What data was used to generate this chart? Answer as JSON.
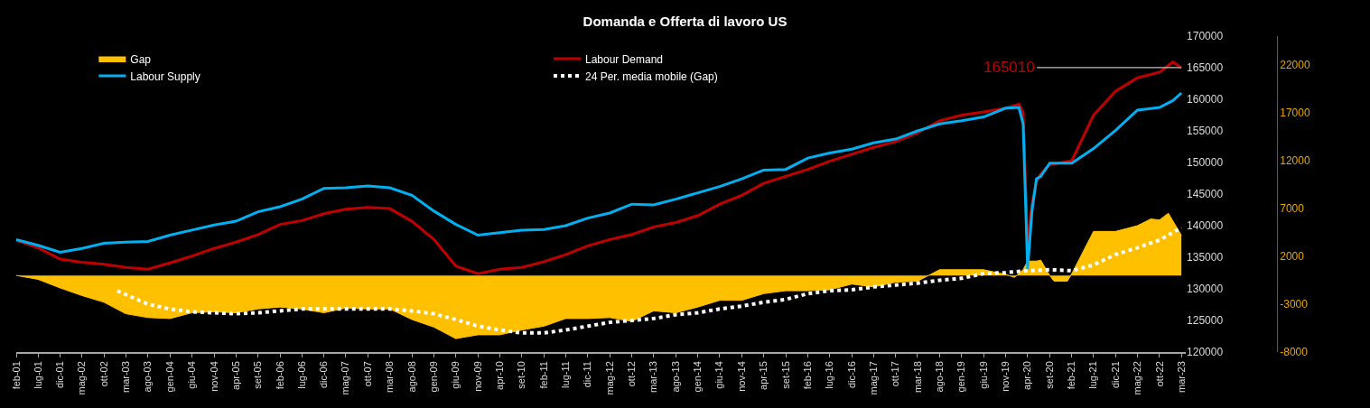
{
  "chart_data": {
    "type": "line",
    "title": "Domanda e Offerta di lavoro US",
    "legend": "top left",
    "xlim": [
      "2001-02",
      "2023-04"
    ],
    "xticks": [
      {
        "value": "2001-02",
        "label": "feb-01"
      },
      {
        "value": "2001-07",
        "label": "lug-01"
      },
      {
        "value": "2001-12",
        "label": "dic-01"
      },
      {
        "value": "2002-05",
        "label": "mag-02"
      },
      {
        "value": "2002-10",
        "label": "ott-02"
      },
      {
        "value": "2003-03",
        "label": "mar-03"
      },
      {
        "value": "2003-08",
        "label": "ago-03"
      },
      {
        "value": "2004-01",
        "label": "gen-04"
      },
      {
        "value": "2004-06",
        "label": "giu-04"
      },
      {
        "value": "2004-11",
        "label": "nov-04"
      },
      {
        "value": "2005-04",
        "label": "apr-05"
      },
      {
        "value": "2005-09",
        "label": "set-05"
      },
      {
        "value": "2006-02",
        "label": "feb-06"
      },
      {
        "value": "2006-07",
        "label": "lug-06"
      },
      {
        "value": "2006-12",
        "label": "dic-06"
      },
      {
        "value": "2007-05",
        "label": "mag-07"
      },
      {
        "value": "2007-10",
        "label": "ott-07"
      },
      {
        "value": "2008-03",
        "label": "mar-08"
      },
      {
        "value": "2008-08",
        "label": "ago-08"
      },
      {
        "value": "2009-01",
        "label": "gen-09"
      },
      {
        "value": "2009-06",
        "label": "giu-09"
      },
      {
        "value": "2009-11",
        "label": "nov-09"
      },
      {
        "value": "2010-04",
        "label": "apr-10"
      },
      {
        "value": "2010-09",
        "label": "set-10"
      },
      {
        "value": "2011-02",
        "label": "feb-11"
      },
      {
        "value": "2011-07",
        "label": "lug-11"
      },
      {
        "value": "2011-12",
        "label": "dic-11"
      },
      {
        "value": "2012-05",
        "label": "mag-12"
      },
      {
        "value": "2012-10",
        "label": "ott-12"
      },
      {
        "value": "2013-03",
        "label": "mar-13"
      },
      {
        "value": "2013-08",
        "label": "ago-13"
      },
      {
        "value": "2014-01",
        "label": "gen-14"
      },
      {
        "value": "2014-06",
        "label": "giu-14"
      },
      {
        "value": "2014-11",
        "label": "nov-14"
      },
      {
        "value": "2015-04",
        "label": "apr-15"
      },
      {
        "value": "2015-09",
        "label": "set-15"
      },
      {
        "value": "2016-02",
        "label": "feb-16"
      },
      {
        "value": "2016-07",
        "label": "lug-16"
      },
      {
        "value": "2016-12",
        "label": "dic-16"
      },
      {
        "value": "2017-05",
        "label": "mag-17"
      },
      {
        "value": "2017-10",
        "label": "ott-17"
      },
      {
        "value": "2018-03",
        "label": "mar-18"
      },
      {
        "value": "2018-08",
        "label": "ago-18"
      },
      {
        "value": "2019-01",
        "label": "gen-19"
      },
      {
        "value": "2019-06",
        "label": "giu-19"
      },
      {
        "value": "2019-11",
        "label": "nov-19"
      },
      {
        "value": "2020-04",
        "label": "apr-20"
      },
      {
        "value": "2020-09",
        "label": "set-20"
      },
      {
        "value": "2021-02",
        "label": "feb-21"
      },
      {
        "value": "2021-07",
        "label": "lug-21"
      },
      {
        "value": "2021-12",
        "label": "dic-21"
      },
      {
        "value": "2022-05",
        "label": "mag-22"
      },
      {
        "value": "2022-10",
        "label": "ott-22"
      },
      {
        "value": "2023-03",
        "label": "mar-23"
      }
    ],
    "ylim": [
      120000,
      170000
    ],
    "yticks": [
      120000,
      125000,
      130000,
      135000,
      140000,
      145000,
      150000,
      155000,
      160000,
      165000,
      170000
    ],
    "y2lim": [
      -8000,
      25000
    ],
    "y2ticks": [
      -8000,
      -3000,
      2000,
      7000,
      12000,
      17000,
      22000
    ],
    "annotations": [
      {
        "text": "165010",
        "x": "2023-03",
        "y": 165010
      }
    ],
    "series": [
      {
        "name": "Gap",
        "type": "area",
        "axis": "y2",
        "color": "#ffc000",
        "x": [
          "2001-02",
          "2001-07",
          "2001-12",
          "2002-05",
          "2002-10",
          "2003-03",
          "2003-08",
          "2004-01",
          "2004-06",
          "2004-11",
          "2005-04",
          "2005-09",
          "2006-02",
          "2006-07",
          "2006-12",
          "2007-05",
          "2007-10",
          "2008-03",
          "2008-08",
          "2009-01",
          "2009-06",
          "2009-11",
          "2010-04",
          "2010-09",
          "2011-02",
          "2011-07",
          "2011-12",
          "2012-05",
          "2012-10",
          "2013-03",
          "2013-08",
          "2014-01",
          "2014-06",
          "2014-11",
          "2015-04",
          "2015-09",
          "2016-02",
          "2016-07",
          "2016-12",
          "2017-05",
          "2017-10",
          "2018-03",
          "2018-08",
          "2019-01",
          "2019-06",
          "2019-11",
          "2020-01",
          "2020-03",
          "2020-04",
          "2020-06",
          "2020-07",
          "2020-09",
          "2020-10",
          "2021-01",
          "2021-02",
          "2021-07",
          "2021-12",
          "2022-05",
          "2022-08",
          "2022-10",
          "2022-12",
          "2023-03"
        ],
        "values": [
          0,
          -400,
          -1300,
          -2100,
          -2800,
          -4000,
          -4400,
          -4500,
          -3900,
          -3800,
          -3900,
          -3500,
          -3300,
          -3500,
          -3900,
          -3400,
          -3500,
          -3500,
          -4600,
          -5400,
          -6600,
          -6200,
          -6200,
          -5700,
          -5300,
          -4500,
          -4500,
          -4400,
          -4800,
          -3700,
          -3900,
          -3300,
          -2600,
          -2600,
          -1900,
          -1600,
          -1600,
          -1500,
          -900,
          -1200,
          -700,
          -600,
          600,
          600,
          600,
          100,
          -200,
          600,
          1500,
          1500,
          1600,
          0,
          -600,
          -600,
          200,
          4600,
          4600,
          5200,
          5900,
          5800,
          6500,
          4200
        ]
      },
      {
        "name": "Labour Demand",
        "color": "#c00000",
        "x": [
          "2001-02",
          "2001-07",
          "2001-12",
          "2002-05",
          "2002-10",
          "2003-03",
          "2003-08",
          "2004-01",
          "2004-06",
          "2004-11",
          "2005-04",
          "2005-09",
          "2006-02",
          "2006-07",
          "2006-12",
          "2007-05",
          "2007-10",
          "2008-03",
          "2008-08",
          "2009-01",
          "2009-06",
          "2009-11",
          "2010-04",
          "2010-09",
          "2011-02",
          "2011-07",
          "2011-12",
          "2012-05",
          "2012-10",
          "2013-03",
          "2013-08",
          "2014-01",
          "2014-06",
          "2014-11",
          "2015-04",
          "2015-09",
          "2016-02",
          "2016-07",
          "2016-12",
          "2017-05",
          "2017-10",
          "2018-03",
          "2018-08",
          "2019-01",
          "2019-06",
          "2019-11",
          "2020-02",
          "2020-03",
          "2020-04",
          "2020-05",
          "2020-06",
          "2020-07",
          "2020-09",
          "2021-02",
          "2021-07",
          "2021-12",
          "2022-05",
          "2022-10",
          "2023-01",
          "2023-03"
        ],
        "values": [
          137700,
          136500,
          134700,
          134200,
          133900,
          133400,
          133100,
          134100,
          135200,
          136400,
          137400,
          138600,
          140200,
          140800,
          141900,
          142600,
          142900,
          142700,
          140700,
          137800,
          133600,
          132400,
          133100,
          133400,
          134300,
          135400,
          136800,
          137800,
          138600,
          139800,
          140500,
          141600,
          143400,
          144800,
          146700,
          147800,
          148900,
          150200,
          151300,
          152400,
          153300,
          154700,
          156600,
          157500,
          158000,
          158600,
          159200,
          157900,
          136800,
          143400,
          146900,
          148200,
          149600,
          150300,
          157500,
          161300,
          163400,
          164300,
          165900,
          165010
        ]
      },
      {
        "name": "Labour Supply",
        "color": "#00b0f0",
        "x": [
          "2001-02",
          "2001-07",
          "2001-12",
          "2002-05",
          "2002-10",
          "2003-03",
          "2003-08",
          "2004-01",
          "2004-06",
          "2004-11",
          "2005-04",
          "2005-09",
          "2006-02",
          "2006-07",
          "2006-12",
          "2007-05",
          "2007-10",
          "2008-03",
          "2008-08",
          "2009-01",
          "2009-06",
          "2009-11",
          "2010-04",
          "2010-09",
          "2011-02",
          "2011-07",
          "2011-12",
          "2012-05",
          "2012-10",
          "2013-03",
          "2013-08",
          "2014-01",
          "2014-06",
          "2014-11",
          "2015-04",
          "2015-09",
          "2016-02",
          "2016-07",
          "2016-12",
          "2017-05",
          "2017-10",
          "2018-03",
          "2018-08",
          "2019-01",
          "2019-06",
          "2019-11",
          "2020-02",
          "2020-03",
          "2020-04",
          "2020-05",
          "2020-06",
          "2020-07",
          "2020-09",
          "2021-02",
          "2021-07",
          "2021-12",
          "2022-05",
          "2022-10",
          "2023-01",
          "2023-03"
        ],
        "values": [
          137800,
          136900,
          135800,
          136400,
          137200,
          137400,
          137500,
          138500,
          139300,
          140100,
          140700,
          142200,
          143000,
          144200,
          145900,
          146000,
          146300,
          146000,
          144800,
          142300,
          140200,
          138500,
          138900,
          139300,
          139400,
          140000,
          141200,
          142000,
          143400,
          143300,
          144200,
          145200,
          146200,
          147400,
          148800,
          148900,
          150700,
          151500,
          152100,
          153100,
          153700,
          155000,
          156100,
          156600,
          157200,
          158600,
          158700,
          156100,
          133100,
          142300,
          147400,
          147800,
          149900,
          149900,
          152200,
          155100,
          158300,
          158700,
          159800,
          161000
        ]
      },
      {
        "name": "24 Per. media mobile (Gap)",
        "axis": "y2",
        "color": "#ffffff",
        "line_style": "dotted",
        "x": [
          "2003-01",
          "2003-08",
          "2004-01",
          "2004-06",
          "2004-11",
          "2005-04",
          "2005-09",
          "2006-02",
          "2006-07",
          "2006-12",
          "2007-05",
          "2007-10",
          "2008-03",
          "2008-08",
          "2009-01",
          "2009-06",
          "2009-11",
          "2010-04",
          "2010-09",
          "2011-02",
          "2011-07",
          "2011-12",
          "2012-05",
          "2012-10",
          "2013-03",
          "2013-08",
          "2014-01",
          "2014-06",
          "2014-11",
          "2015-04",
          "2015-09",
          "2016-02",
          "2016-07",
          "2016-12",
          "2017-05",
          "2017-10",
          "2018-03",
          "2018-08",
          "2019-01",
          "2019-06",
          "2019-11",
          "2020-04",
          "2020-09",
          "2021-02",
          "2021-07",
          "2021-12",
          "2022-05",
          "2022-10",
          "2023-03"
        ],
        "values": [
          -1600,
          -3000,
          -3500,
          -3800,
          -3900,
          -4000,
          -3900,
          -3700,
          -3500,
          -3500,
          -3500,
          -3500,
          -3500,
          -3700,
          -4000,
          -4600,
          -5300,
          -5700,
          -6000,
          -6000,
          -5700,
          -5300,
          -4900,
          -4700,
          -4500,
          -4100,
          -3900,
          -3500,
          -3200,
          -2800,
          -2500,
          -1900,
          -1600,
          -1500,
          -1200,
          -1000,
          -800,
          -500,
          -300,
          200,
          300,
          500,
          600,
          500,
          1100,
          2200,
          2900,
          3700,
          5000
        ]
      }
    ]
  }
}
